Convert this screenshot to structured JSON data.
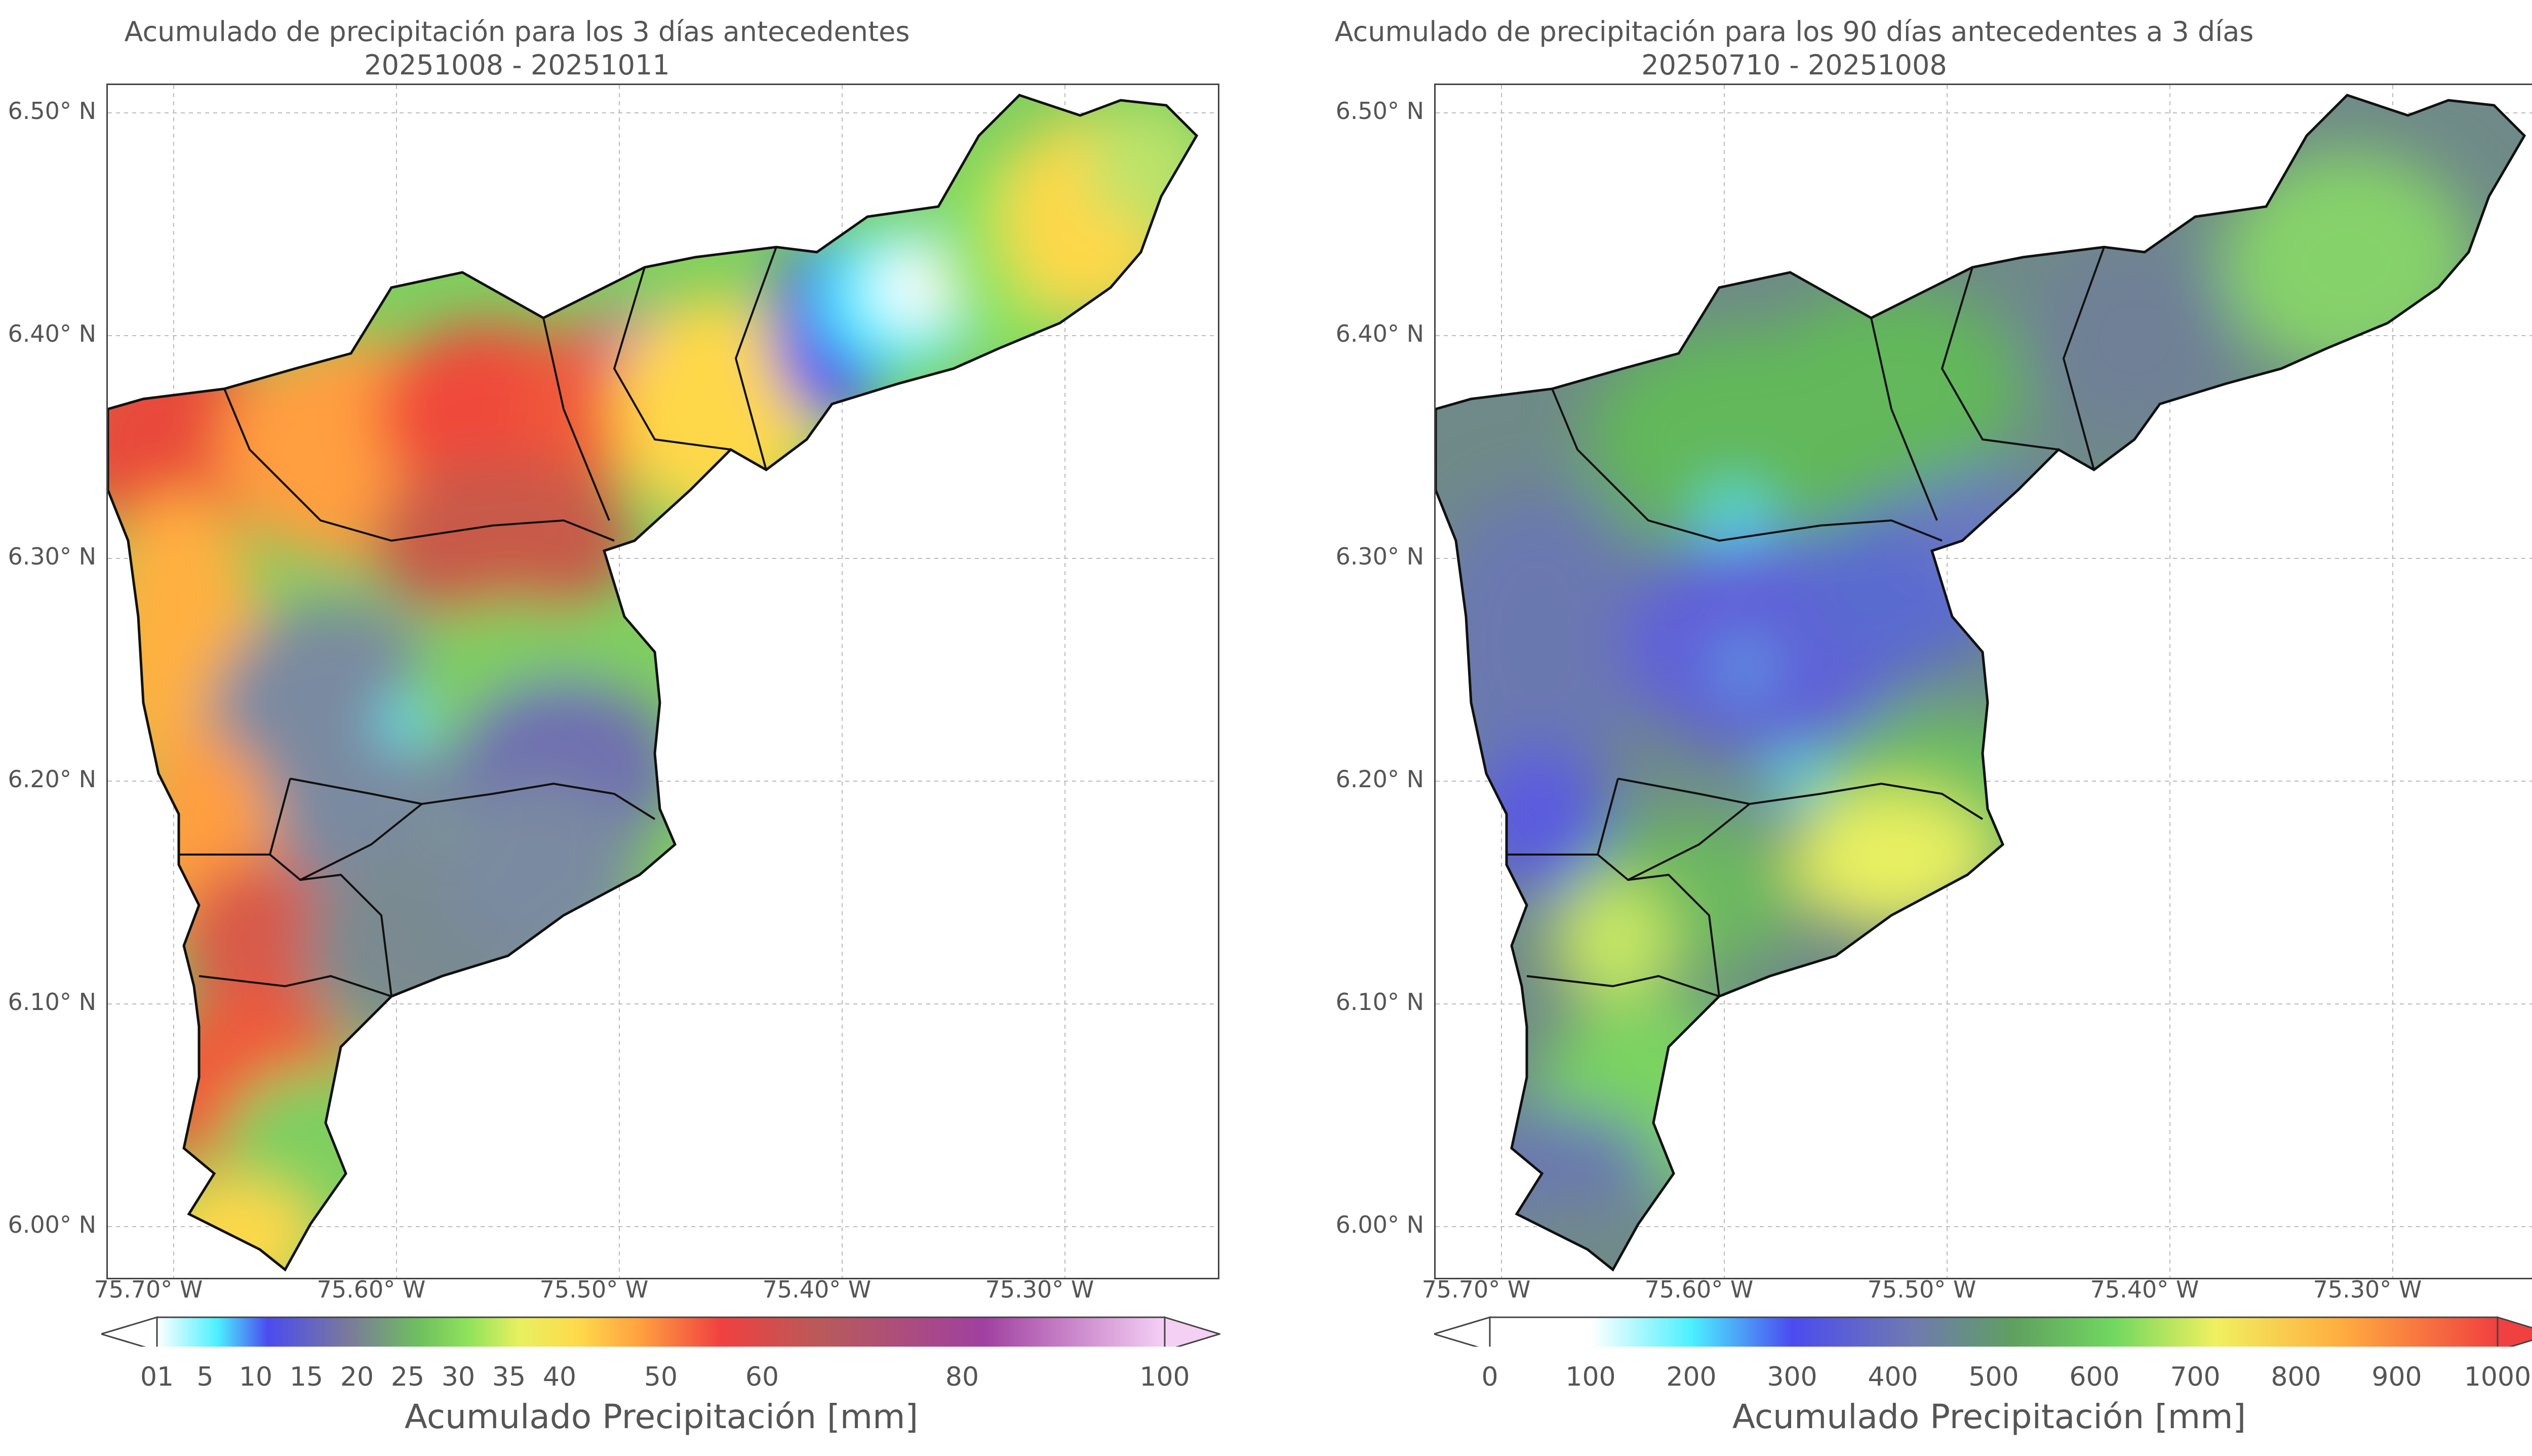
{
  "left_panel": {
    "title_line1": "Acumulado de precipitación para los 3 días antecedentes",
    "title_line2": "20251008 - 20251011",
    "lat_labels": [
      "6.50° N",
      "6.40° N",
      "6.30° N",
      "6.20° N",
      "6.10° N",
      "6.00° N"
    ],
    "lon_labels": [
      "75.70° W",
      "75.60° W",
      "75.50° W",
      "75.40° W",
      "75.30° W"
    ],
    "colorbar_ticks": [
      "01",
      "5",
      "10",
      "15",
      "20",
      "25",
      "30",
      "35",
      "40",
      "50",
      "60",
      "80",
      "100"
    ],
    "colorbar_label": "Acumulado Precipitación [mm]",
    "colorbar_colors": [
      "#ffffff",
      "#4cf0ff",
      "#4b4bf0",
      "#7a7a9a",
      "#6fbf5f",
      "#90e35b",
      "#e8f060",
      "#ffd84a",
      "#ff9f40",
      "#f04040",
      "#b85a5a",
      "#a040a0",
      "#f5d0f5"
    ]
  },
  "right_panel": {
    "title_line1": "Acumulado de precipitación para los 90 días antecedentes a 3 días",
    "title_line2": "20250710 - 20251008",
    "lat_labels": [
      "6.50° N",
      "6.40° N",
      "6.30° N",
      "6.20° N",
      "6.10° N",
      "6.00° N"
    ],
    "lon_labels": [
      "75.70° W",
      "75.60° W",
      "75.50° W",
      "75.40° W",
      "75.30° W"
    ],
    "colorbar_ticks": [
      "0",
      "100",
      "200",
      "300",
      "400",
      "500",
      "600",
      "700",
      "800",
      "900",
      "1000"
    ],
    "colorbar_label": "Acumulado Precipitación [mm]",
    "colorbar_colors": [
      "#ffffff",
      "#4cf0ff",
      "#4b4bf0",
      "#6f7ab0",
      "#5fa060",
      "#72d860",
      "#f0f060",
      "#ffb040",
      "#f04040"
    ]
  }
}
